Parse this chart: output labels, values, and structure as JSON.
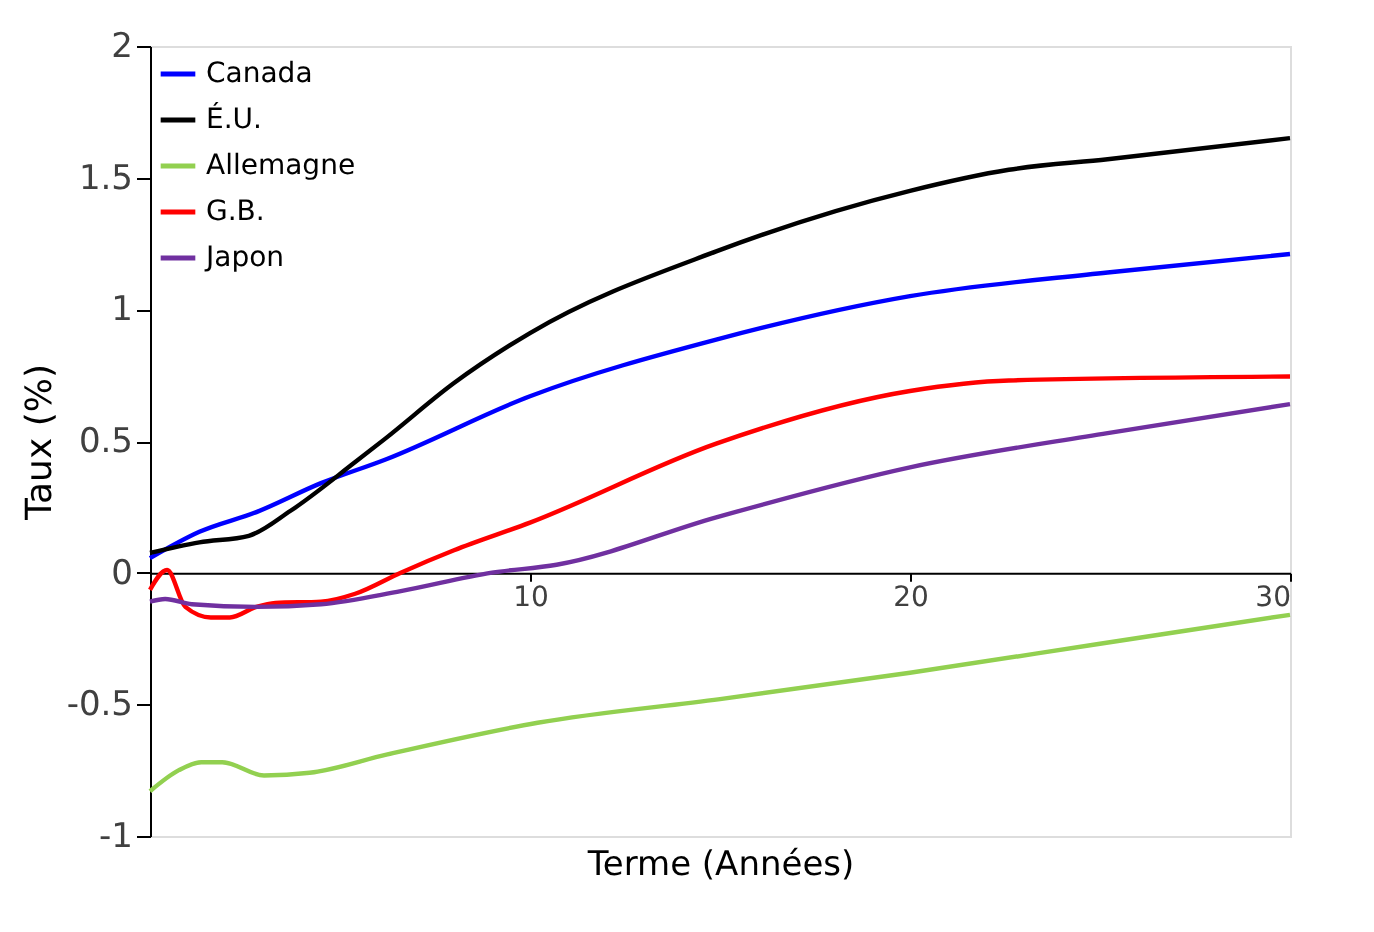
{
  "chart_data": {
    "type": "line",
    "xlabel": "Terme (Années)",
    "ylabel": "Taux (%)",
    "xlim": [
      0,
      30
    ],
    "xticks": [
      10,
      20,
      30
    ],
    "ylim": [
      -1,
      2
    ],
    "yticks": [
      -1,
      -0.5,
      0,
      0.5,
      1,
      1.5,
      2
    ],
    "grid": false,
    "legend": "top left",
    "marker": "none",
    "line_style": "solid",
    "series": [
      {
        "name": "Canada",
        "color": "#0000ff",
        "x": [
          0,
          1.3,
          2.8,
          4.5,
          6.2,
          10,
          14.9,
          20,
          25.2,
          30
        ],
        "values": [
          0.055,
          0.155,
          0.23,
          0.34,
          0.43,
          0.67,
          0.885,
          1.05,
          1.14,
          1.21
        ]
      },
      {
        "name": "É.U.",
        "color": "#000000",
        "x": [
          0,
          1.3,
          2.6,
          3.7,
          5.4,
          6.2,
          8,
          10,
          14.9,
          20,
          22.6,
          25.2,
          30
        ],
        "values": [
          0.075,
          0.115,
          0.14,
          0.235,
          0.42,
          0.51,
          0.72,
          0.91,
          1.22,
          1.45,
          1.53,
          1.57,
          1.65
        ]
      },
      {
        "name": "Allemagne",
        "color": "#92d050",
        "x": [
          0,
          0.76,
          1.35,
          1.9,
          3.0,
          4.2,
          6.25,
          10.2,
          15,
          20,
          25,
          30
        ],
        "values": [
          -0.83,
          -0.75,
          -0.72,
          -0.72,
          -0.77,
          -0.76,
          -0.69,
          -0.57,
          -0.48,
          -0.38,
          -0.27,
          -0.16
        ]
      },
      {
        "name": "G.B.",
        "color": "#ff0000",
        "x": [
          0,
          0.45,
          0.93,
          1.6,
          2.1,
          2.8,
          3.3,
          4.5,
          5.4,
          6.6,
          8,
          10,
          14.9,
          20,
          22.6,
          30
        ],
        "values": [
          -0.065,
          0.01,
          -0.13,
          -0.17,
          -0.17,
          -0.13,
          -0.115,
          -0.11,
          -0.08,
          0,
          0.085,
          0.19,
          0.49,
          0.69,
          0.73,
          0.745
        ]
      },
      {
        "name": "Japon",
        "color": "#7030a0",
        "x": [
          0,
          0.4,
          1.1,
          2.8,
          4.5,
          6.6,
          9,
          10.7,
          14.9,
          20,
          25.2,
          30
        ],
        "values": [
          -0.11,
          -0.1,
          -0.12,
          -0.13,
          -0.12,
          -0.07,
          0,
          0.03,
          0.21,
          0.4,
          0.53,
          0.64
        ]
      }
    ]
  }
}
